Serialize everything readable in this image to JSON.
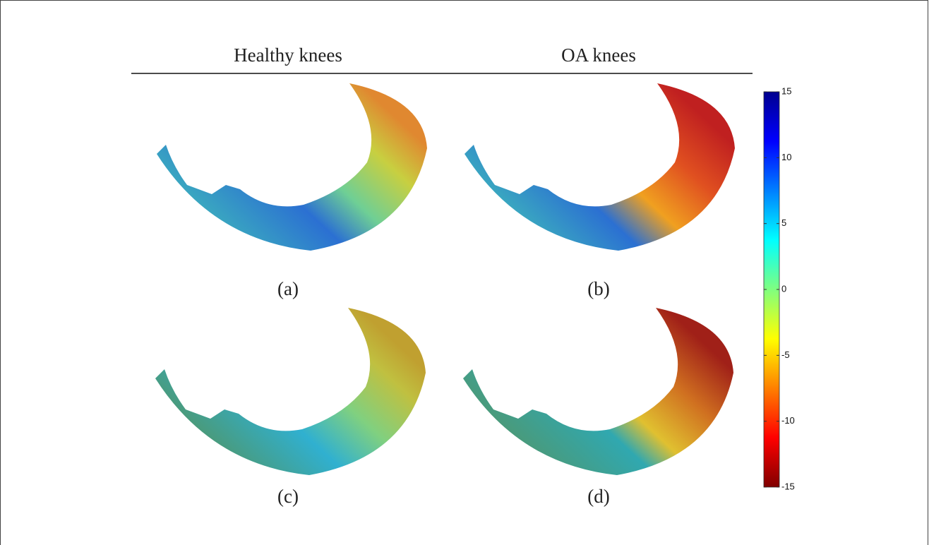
{
  "header": {
    "left_title": "Healthy knees",
    "right_title": "OA knees"
  },
  "panels": [
    {
      "label": "(a)"
    },
    {
      "label": "(b)"
    },
    {
      "label": "(c)"
    },
    {
      "label": "(d)"
    }
  ],
  "colorbar": {
    "lim": [
      -15,
      15
    ],
    "ticks": [
      15,
      10,
      5,
      0,
      -5,
      -10,
      -15
    ]
  }
}
